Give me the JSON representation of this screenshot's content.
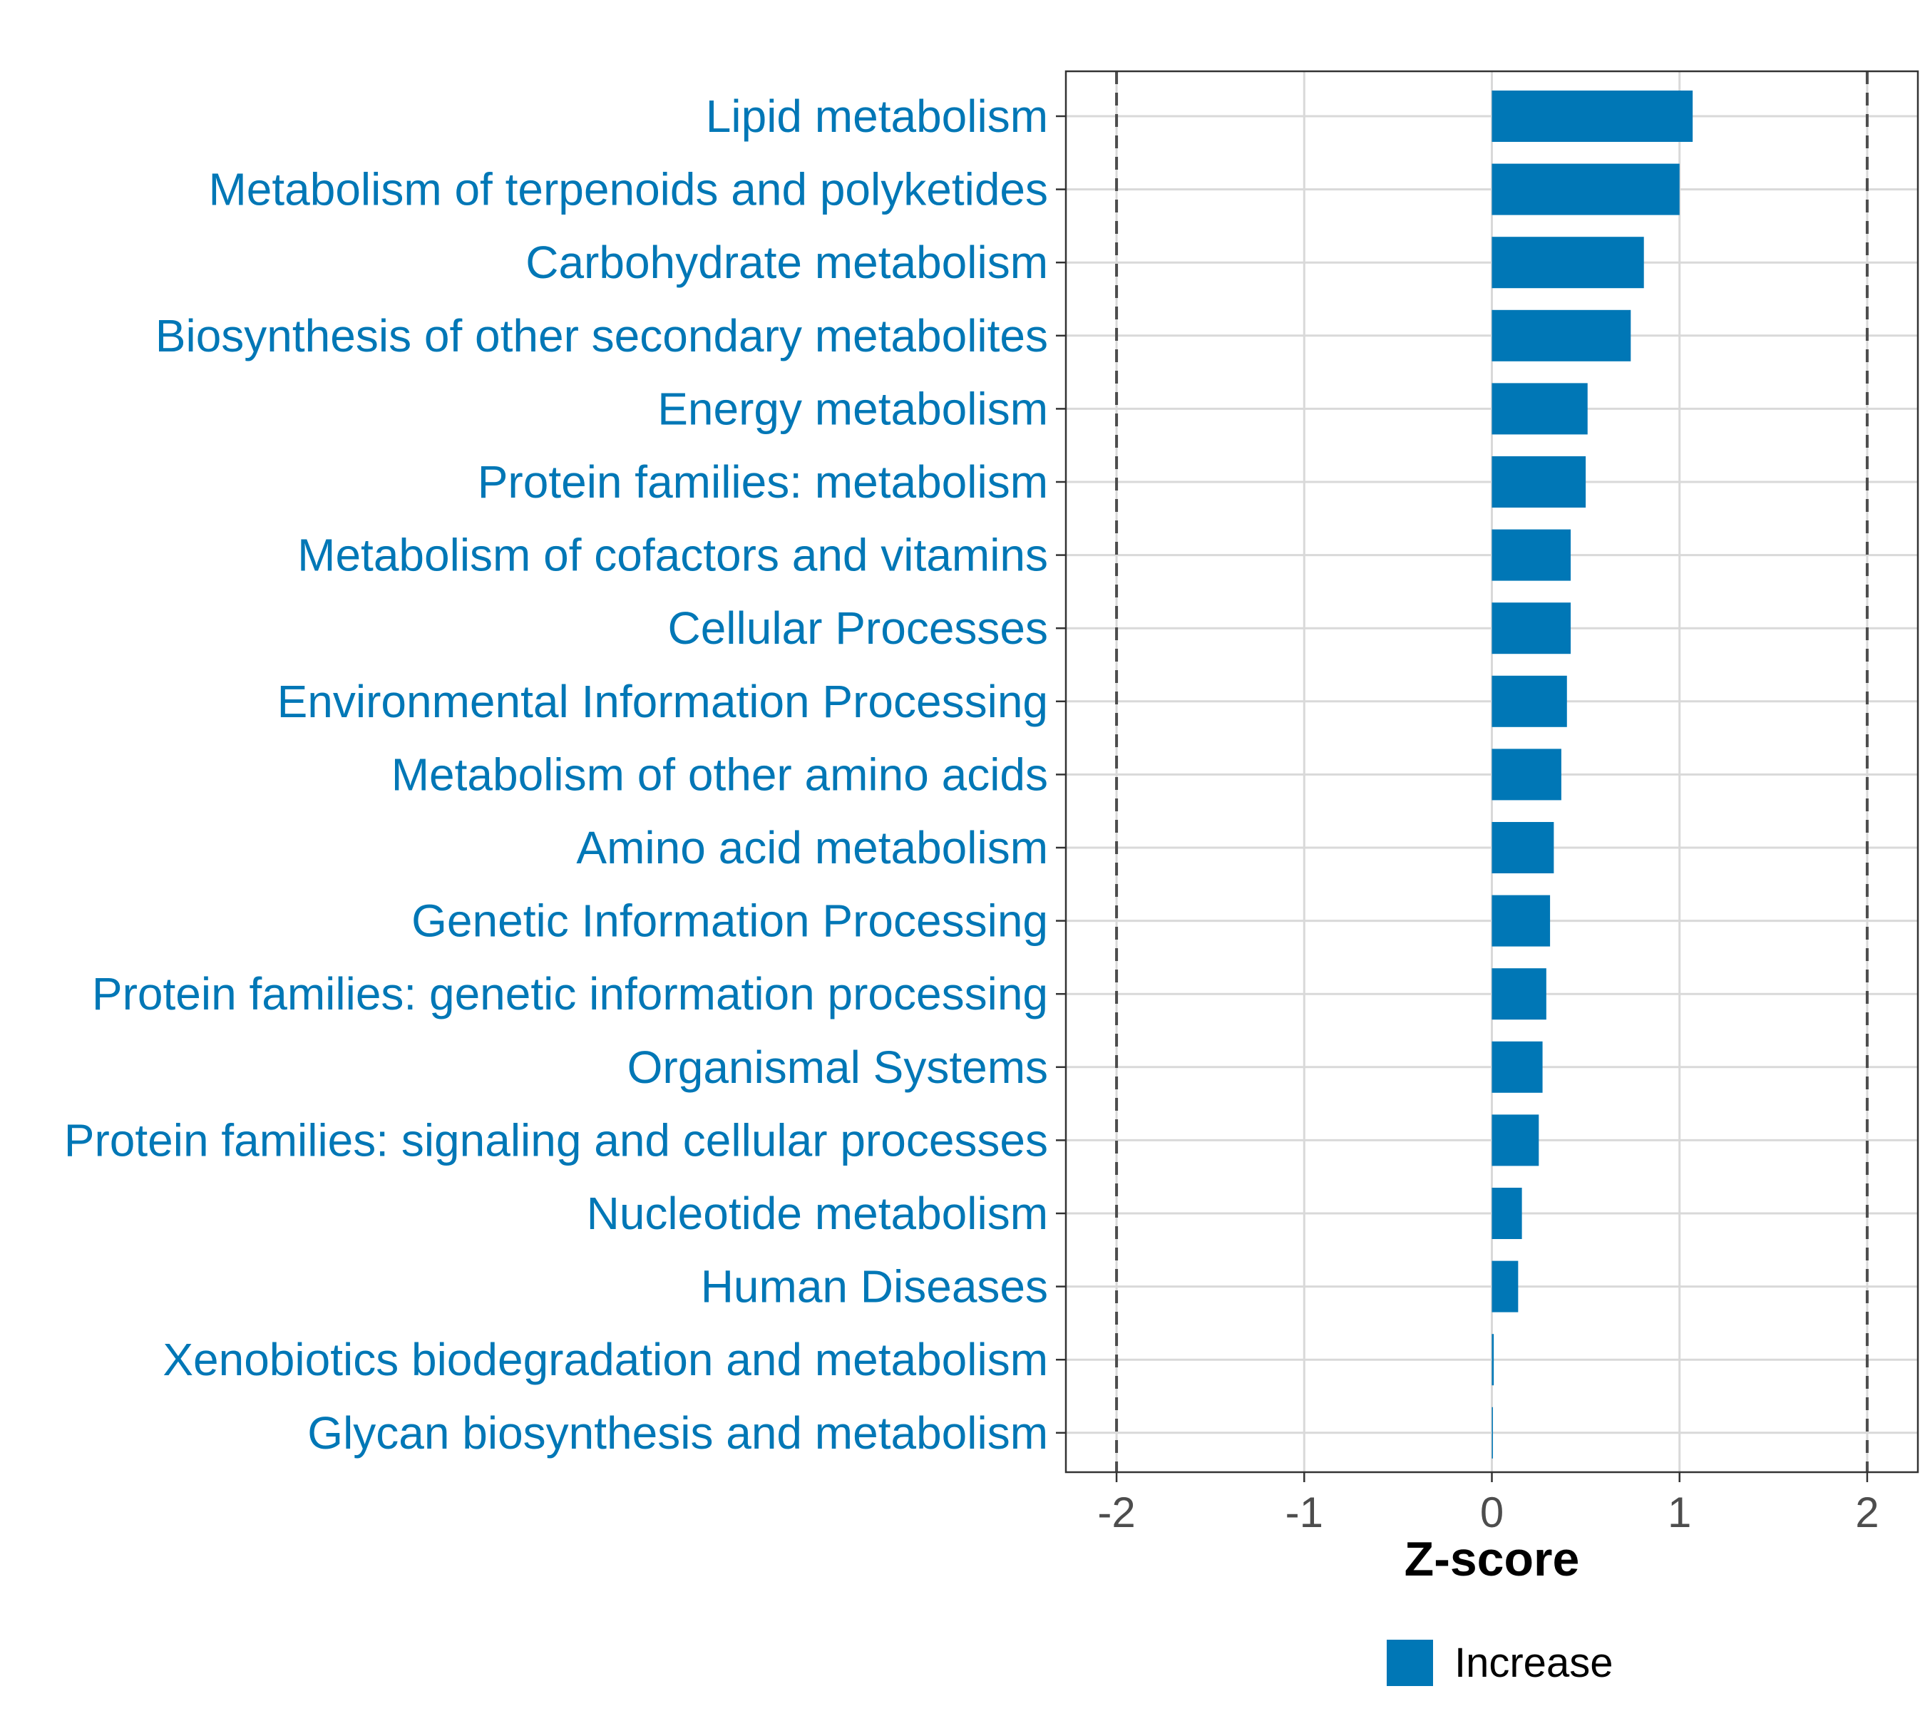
{
  "chart_data": {
    "type": "bar",
    "orientation": "horizontal",
    "categories": [
      "Lipid metabolism",
      "Metabolism of terpenoids and polyketides",
      "Carbohydrate metabolism",
      "Biosynthesis of other secondary metabolites",
      "Energy metabolism",
      "Protein families: metabolism",
      "Metabolism of cofactors and vitamins",
      "Cellular Processes",
      "Environmental Information Processing",
      "Metabolism of other amino acids",
      "Amino acid metabolism",
      "Genetic Information Processing",
      "Protein families: genetic information processing",
      "Organismal Systems",
      "Protein families: signaling and cellular processes",
      "Nucleotide metabolism",
      "Human Diseases",
      "Xenobiotics biodegradation and metabolism",
      "Glycan biosynthesis and metabolism"
    ],
    "values": [
      1.07,
      1.0,
      0.81,
      0.74,
      0.51,
      0.5,
      0.42,
      0.42,
      0.4,
      0.37,
      0.33,
      0.31,
      0.29,
      0.27,
      0.25,
      0.16,
      0.14,
      0.01,
      0.005
    ],
    "title": "",
    "xlabel": "Z-score",
    "ylabel": "",
    "xlim": [
      -2.27,
      2.27
    ],
    "xticks": [
      "-2",
      "-1",
      "0",
      "1",
      "2"
    ],
    "xtick_values": [
      -2,
      -1,
      0,
      1,
      2
    ],
    "reference_lines": [
      -2,
      2
    ],
    "grid": true,
    "bar_color": "#0077b6",
    "label_color": "#0077b6",
    "legend": {
      "position": "bottom",
      "entries": [
        {
          "label": "Increase",
          "color": "#0077b6"
        }
      ]
    }
  }
}
